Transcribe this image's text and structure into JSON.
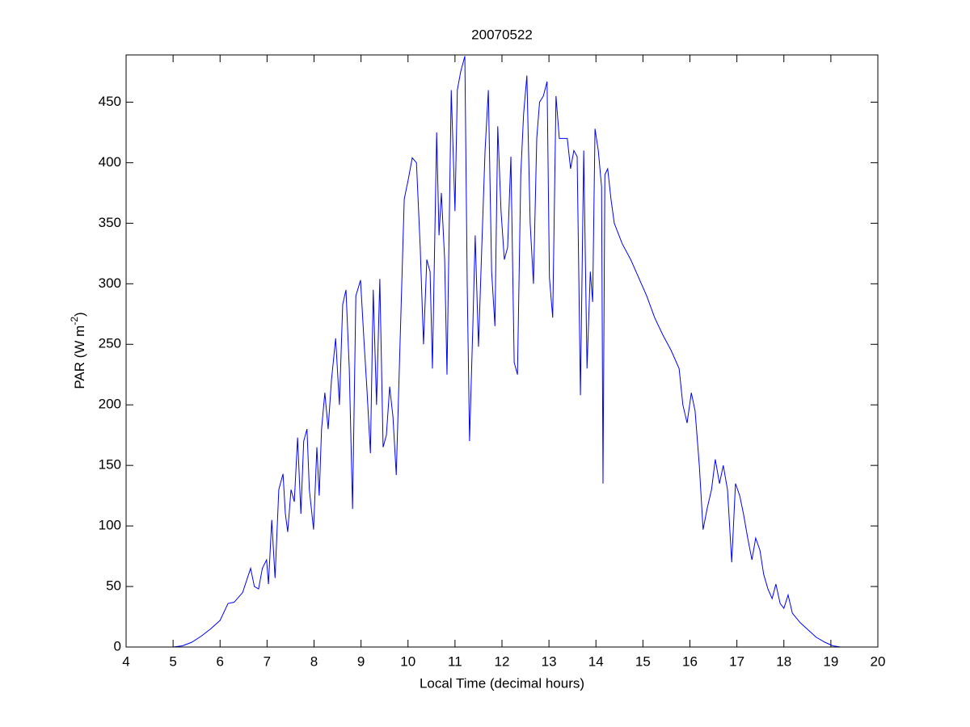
{
  "chart_data": {
    "type": "line",
    "title": "20070522",
    "xlabel": "Local Time (decimal hours)",
    "ylabel": {
      "text": "PAR (W m",
      "superscript": "-2",
      "suffix": ")"
    },
    "color": "#0000ff",
    "xlim": [
      4,
      20
    ],
    "xticks": [
      4,
      5,
      6,
      7,
      8,
      9,
      10,
      11,
      12,
      13,
      14,
      15,
      16,
      17,
      18,
      19,
      20
    ],
    "ylim": [
      0,
      489
    ],
    "yticks": [
      0,
      50,
      100,
      150,
      200,
      250,
      300,
      350,
      400,
      450
    ],
    "x": [
      5.0,
      5.2,
      5.4,
      5.6,
      5.8,
      6.0,
      6.17,
      6.3,
      6.48,
      6.65,
      6.73,
      6.82,
      6.9,
      6.99,
      7.03,
      7.1,
      7.17,
      7.25,
      7.34,
      7.39,
      7.44,
      7.51,
      7.58,
      7.65,
      7.72,
      7.78,
      7.85,
      7.9,
      7.99,
      8.06,
      8.11,
      8.16,
      8.23,
      8.3,
      8.37,
      8.46,
      8.54,
      8.61,
      8.68,
      8.75,
      8.82,
      8.89,
      8.99,
      9.06,
      9.13,
      9.2,
      9.26,
      9.33,
      9.4,
      9.47,
      9.54,
      9.61,
      9.68,
      9.75,
      9.83,
      9.92,
      10.0,
      10.09,
      10.18,
      10.26,
      10.33,
      10.4,
      10.47,
      10.52,
      10.61,
      10.66,
      10.71,
      10.78,
      10.83,
      10.92,
      11.0,
      11.05,
      11.12,
      11.21,
      11.26,
      11.31,
      11.38,
      11.43,
      11.5,
      11.57,
      11.64,
      11.71,
      11.78,
      11.85,
      11.91,
      11.98,
      12.05,
      12.12,
      12.19,
      12.26,
      12.33,
      12.4,
      12.46,
      12.53,
      12.6,
      12.67,
      12.74,
      12.8,
      12.88,
      12.96,
      13.01,
      13.08,
      13.15,
      13.22,
      13.31,
      13.39,
      13.46,
      13.53,
      13.6,
      13.67,
      13.74,
      13.81,
      13.88,
      13.93,
      13.98,
      14.05,
      14.12,
      14.15,
      14.19,
      14.25,
      14.32,
      14.39,
      14.56,
      14.74,
      14.91,
      15.08,
      15.25,
      15.42,
      15.6,
      15.77,
      15.85,
      15.94,
      16.03,
      16.11,
      16.2,
      16.28,
      16.37,
      16.46,
      16.54,
      16.63,
      16.71,
      16.8,
      16.89,
      16.97,
      17.06,
      17.14,
      17.23,
      17.32,
      17.4,
      17.49,
      17.57,
      17.66,
      17.75,
      17.83,
      17.92,
      18.0,
      18.09,
      18.18,
      18.35,
      18.52,
      18.69,
      18.87,
      19.04,
      19.21,
      19.35
    ],
    "values": [
      0,
      1,
      4,
      9,
      15,
      22,
      36,
      37,
      45,
      65,
      50,
      48,
      65,
      72,
      52,
      105,
      57,
      130,
      143,
      110,
      95,
      130,
      120,
      173,
      110,
      170,
      180,
      130,
      97,
      165,
      125,
      180,
      210,
      180,
      220,
      255,
      200,
      283,
      295,
      230,
      114,
      290,
      303,
      255,
      210,
      160,
      295,
      200,
      304,
      165,
      175,
      215,
      190,
      142,
      250,
      370,
      385,
      404,
      400,
      330,
      250,
      320,
      310,
      230,
      425,
      340,
      375,
      320,
      225,
      460,
      360,
      460,
      475,
      488,
      300,
      170,
      265,
      340,
      248,
      330,
      410,
      460,
      310,
      265,
      430,
      360,
      320,
      330,
      405,
      235,
      225,
      390,
      440,
      472,
      350,
      300,
      420,
      450,
      455,
      467,
      305,
      272,
      455,
      420,
      420,
      420,
      395,
      410,
      405,
      208,
      410,
      230,
      310,
      285,
      428,
      410,
      380,
      135,
      390,
      395,
      370,
      350,
      333,
      320,
      305,
      290,
      272,
      258,
      245,
      230,
      200,
      185,
      210,
      195,
      150,
      97,
      115,
      130,
      155,
      135,
      150,
      130,
      70,
      135,
      125,
      110,
      90,
      72,
      90,
      80,
      60,
      48,
      40,
      52,
      36,
      32,
      43,
      28,
      20,
      14,
      8,
      4,
      1,
      0,
      0
    ]
  }
}
